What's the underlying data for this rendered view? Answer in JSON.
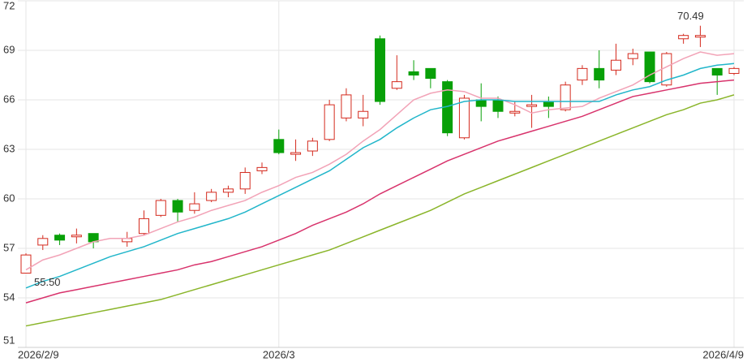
{
  "chart_data": {
    "type": "candlestick",
    "categories": [
      "2026/2/9",
      null,
      null,
      null,
      null,
      null,
      null,
      null,
      null,
      null,
      null,
      null,
      null,
      null,
      null,
      "2026/3",
      null,
      null,
      null,
      null,
      null,
      null,
      null,
      null,
      null,
      null,
      null,
      null,
      null,
      null,
      null,
      null,
      null,
      null,
      null,
      null,
      null,
      null,
      null,
      null,
      null,
      null,
      "2026/4/9"
    ],
    "open": [
      55.5,
      57.2,
      57.8,
      57.7,
      57.9,
      null,
      57.4,
      57.9,
      59.0,
      59.9,
      59.3,
      59.9,
      60.4,
      60.6,
      61.7,
      63.6,
      62.7,
      62.9,
      63.6,
      64.9,
      64.9,
      69.7,
      66.7,
      67.7,
      67.9,
      67.1,
      63.7,
      66.0,
      66.0,
      65.2,
      65.6,
      65.9,
      65.4,
      67.2,
      67.9,
      67.8,
      68.5,
      68.9,
      66.9,
      69.7,
      69.8,
      67.9,
      67.6
    ],
    "high": [
      56.7,
      57.8,
      57.9,
      58.2,
      57.9,
      null,
      58.0,
      59.3,
      60.0,
      60.0,
      60.4,
      60.6,
      60.8,
      61.9,
      62.2,
      64.2,
      63.6,
      63.7,
      66.0,
      66.7,
      66.3,
      69.9,
      68.7,
      68.4,
      67.9,
      67.2,
      66.3,
      67.0,
      66.2,
      65.9,
      66.3,
      66.2,
      67.1,
      68.1,
      69.0,
      69.4,
      69.1,
      68.9,
      68.9,
      70.0,
      70.49,
      67.9,
      68.0
    ],
    "low": [
      55.5,
      56.9,
      57.2,
      57.3,
      57.0,
      null,
      57.1,
      57.8,
      58.9,
      58.6,
      59.1,
      59.8,
      60.1,
      60.3,
      61.5,
      62.7,
      62.3,
      62.6,
      63.5,
      64.7,
      64.4,
      65.7,
      66.6,
      67.2,
      66.7,
      63.8,
      63.6,
      64.7,
      64.9,
      65.0,
      64.3,
      64.9,
      65.3,
      66.9,
      66.7,
      67.5,
      68.1,
      67.0,
      66.8,
      69.4,
      69.2,
      66.3,
      67.5
    ],
    "close": [
      56.6,
      57.6,
      57.5,
      57.8,
      57.4,
      null,
      57.6,
      58.8,
      59.9,
      59.2,
      59.7,
      60.4,
      60.6,
      61.6,
      61.9,
      62.8,
      62.8,
      63.5,
      65.7,
      66.3,
      65.3,
      65.9,
      67.1,
      67.5,
      67.3,
      64.0,
      66.1,
      65.6,
      65.3,
      65.3,
      65.7,
      65.6,
      66.9,
      67.9,
      67.2,
      68.4,
      68.8,
      67.1,
      68.8,
      69.9,
      69.9,
      67.5,
      67.9
    ],
    "up_color": "#d42a1e",
    "down_color": "#08a008",
    "series": [
      {
        "color": "#f2a3b7",
        "values": [
          55.7,
          56.3,
          56.6,
          57.0,
          57.4,
          57.6,
          57.6,
          57.8,
          58.2,
          58.6,
          58.9,
          59.3,
          59.6,
          59.9,
          60.4,
          60.8,
          61.3,
          61.6,
          62.1,
          62.7,
          63.5,
          64.2,
          65.1,
          66.0,
          66.4,
          66.6,
          66.5,
          66.1,
          66.1,
          65.7,
          65.2,
          65.4,
          65.5,
          65.6,
          66.1,
          66.5,
          66.9,
          67.5,
          68.0,
          68.5,
          68.9,
          68.7,
          68.8
        ]
      },
      {
        "color": "#22b6ca",
        "values": [
          54.6,
          55.0,
          55.3,
          55.7,
          56.1,
          56.5,
          56.8,
          57.1,
          57.5,
          57.9,
          58.2,
          58.5,
          58.8,
          59.2,
          59.7,
          60.2,
          60.7,
          61.2,
          61.7,
          62.4,
          63.1,
          63.6,
          64.3,
          64.9,
          65.4,
          65.6,
          65.9,
          66.0,
          66.0,
          65.9,
          65.9,
          65.9,
          65.9,
          65.9,
          65.9,
          66.3,
          66.6,
          66.8,
          67.2,
          67.5,
          67.9,
          68.1,
          68.2
        ]
      },
      {
        "color": "#d8336c",
        "values": [
          53.7,
          54.0,
          54.3,
          54.5,
          54.7,
          54.9,
          55.1,
          55.3,
          55.5,
          55.7,
          56.0,
          56.2,
          56.5,
          56.8,
          57.1,
          57.5,
          57.9,
          58.4,
          58.8,
          59.2,
          59.7,
          60.3,
          60.8,
          61.3,
          61.8,
          62.3,
          62.7,
          63.1,
          63.5,
          63.8,
          64.1,
          64.4,
          64.7,
          65.0,
          65.4,
          65.8,
          66.2,
          66.4,
          66.6,
          66.8,
          67.0,
          67.1,
          67.2
        ]
      },
      {
        "color": "#8ab52a",
        "values": [
          52.3,
          52.5,
          52.7,
          52.9,
          53.1,
          53.3,
          53.5,
          53.7,
          53.9,
          54.2,
          54.5,
          54.8,
          55.1,
          55.4,
          55.7,
          56.0,
          56.3,
          56.6,
          56.9,
          57.3,
          57.7,
          58.1,
          58.5,
          58.9,
          59.3,
          59.8,
          60.3,
          60.7,
          61.1,
          61.5,
          61.9,
          62.3,
          62.7,
          63.1,
          63.5,
          63.9,
          64.3,
          64.7,
          65.1,
          65.4,
          65.8,
          66.0,
          66.3
        ]
      }
    ],
    "extremes": {
      "low": {
        "value": 55.5,
        "label": "55.50"
      },
      "high": {
        "value": 70.49,
        "label": "70.49"
      }
    },
    "ylim": [
      51,
      72
    ],
    "yticks": [
      51,
      54,
      57,
      60,
      63,
      66,
      69,
      72
    ],
    "grid": true
  }
}
